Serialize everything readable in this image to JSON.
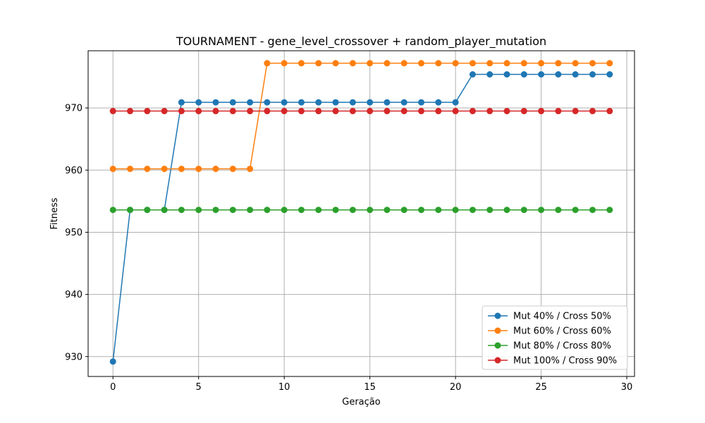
{
  "chart_data": {
    "type": "line",
    "title": "TOURNAMENT - gene_level_crossover + random_player_mutation",
    "xlabel": "Geração",
    "ylabel": "Fitness",
    "xlim": [
      -1.45,
      30.45
    ],
    "ylim": [
      926.8,
      979.2
    ],
    "xticks": [
      0,
      5,
      10,
      15,
      20,
      25,
      30
    ],
    "yticks": [
      930,
      940,
      950,
      960,
      970
    ],
    "grid": true,
    "legend_position": "lower-right",
    "x": [
      0,
      1,
      2,
      3,
      4,
      5,
      6,
      7,
      8,
      9,
      10,
      11,
      12,
      13,
      14,
      15,
      16,
      17,
      18,
      19,
      20,
      21,
      22,
      23,
      24,
      25,
      26,
      27,
      28,
      29
    ],
    "series": [
      {
        "name": "Mut 40% / Cross 50%",
        "color": "#1f77b4",
        "values": [
          929.2,
          953.6,
          953.6,
          953.6,
          970.9,
          970.9,
          970.9,
          970.9,
          970.9,
          970.9,
          970.9,
          970.9,
          970.9,
          970.9,
          970.9,
          970.9,
          970.9,
          970.9,
          970.9,
          970.9,
          970.9,
          975.4,
          975.4,
          975.4,
          975.4,
          975.4,
          975.4,
          975.4,
          975.4,
          975.4
        ]
      },
      {
        "name": "Mut 60% / Cross 60%",
        "color": "#ff7f0e",
        "values": [
          960.2,
          960.2,
          960.2,
          960.2,
          960.2,
          960.2,
          960.2,
          960.2,
          960.2,
          977.2,
          977.2,
          977.2,
          977.2,
          977.2,
          977.2,
          977.2,
          977.2,
          977.2,
          977.2,
          977.2,
          977.2,
          977.2,
          977.2,
          977.2,
          977.2,
          977.2,
          977.2,
          977.2,
          977.2,
          977.2
        ]
      },
      {
        "name": "Mut 80% / Cross 80%",
        "color": "#2ca02c",
        "values": [
          953.6,
          953.6,
          953.6,
          953.6,
          953.6,
          953.6,
          953.6,
          953.6,
          953.6,
          953.6,
          953.6,
          953.6,
          953.6,
          953.6,
          953.6,
          953.6,
          953.6,
          953.6,
          953.6,
          953.6,
          953.6,
          953.6,
          953.6,
          953.6,
          953.6,
          953.6,
          953.6,
          953.6,
          953.6,
          953.6
        ]
      },
      {
        "name": "Mut 100% / Cross 90%",
        "color": "#d62728",
        "values": [
          969.5,
          969.5,
          969.5,
          969.5,
          969.5,
          969.5,
          969.5,
          969.5,
          969.5,
          969.5,
          969.5,
          969.5,
          969.5,
          969.5,
          969.5,
          969.5,
          969.5,
          969.5,
          969.5,
          969.5,
          969.5,
          969.5,
          969.5,
          969.5,
          969.5,
          969.5,
          969.5,
          969.5,
          969.5,
          969.5
        ]
      }
    ]
  }
}
